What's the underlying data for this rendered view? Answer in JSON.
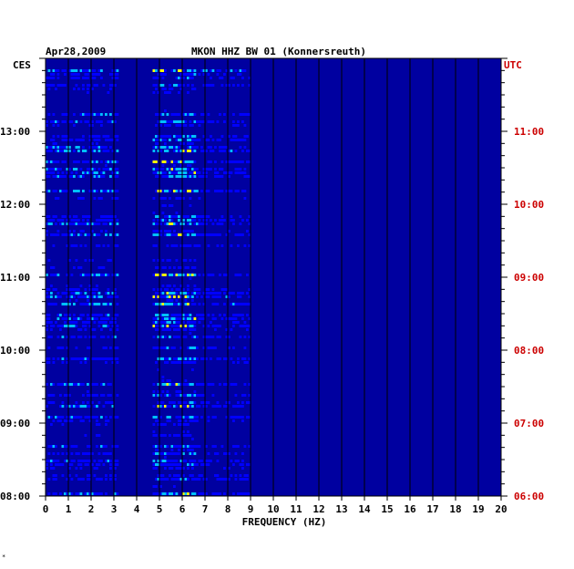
{
  "header": {
    "date": "Apr28,2009",
    "station": "MKON HHZ BW 01 (Konnersreuth)"
  },
  "footer_mark": "*",
  "chart_data": {
    "type": "heatmap",
    "title": "MKON HHZ BW 01 (Konnersreuth)",
    "date": "Apr28,2009",
    "xlabel": "FREQUENCY (HZ)",
    "xlim": [
      0,
      20
    ],
    "x_ticks": [
      "0",
      "1",
      "2",
      "3",
      "4",
      "5",
      "6",
      "7",
      "8",
      "9",
      "10",
      "11",
      "12",
      "13",
      "14",
      "15",
      "16",
      "17",
      "18",
      "19",
      "20"
    ],
    "left_axis_label": "CES",
    "left_ticks": [
      "08:00",
      "09:00",
      "10:00",
      "11:00",
      "12:00",
      "13:00"
    ],
    "right_axis_label": "UTC",
    "right_ticks": [
      "06:00",
      "07:00",
      "08:00",
      "09:00",
      "10:00",
      "11:00"
    ],
    "time_range_local_hours": [
      8.0,
      14.0
    ],
    "grid": true,
    "colormap": [
      "#000080",
      "#0000ff",
      "#00c0ff",
      "#ffff00",
      "#ff0000"
    ],
    "background_color": "#0000a0",
    "axis_color_left": "#000000",
    "axis_color_right": "#cc0000"
  }
}
